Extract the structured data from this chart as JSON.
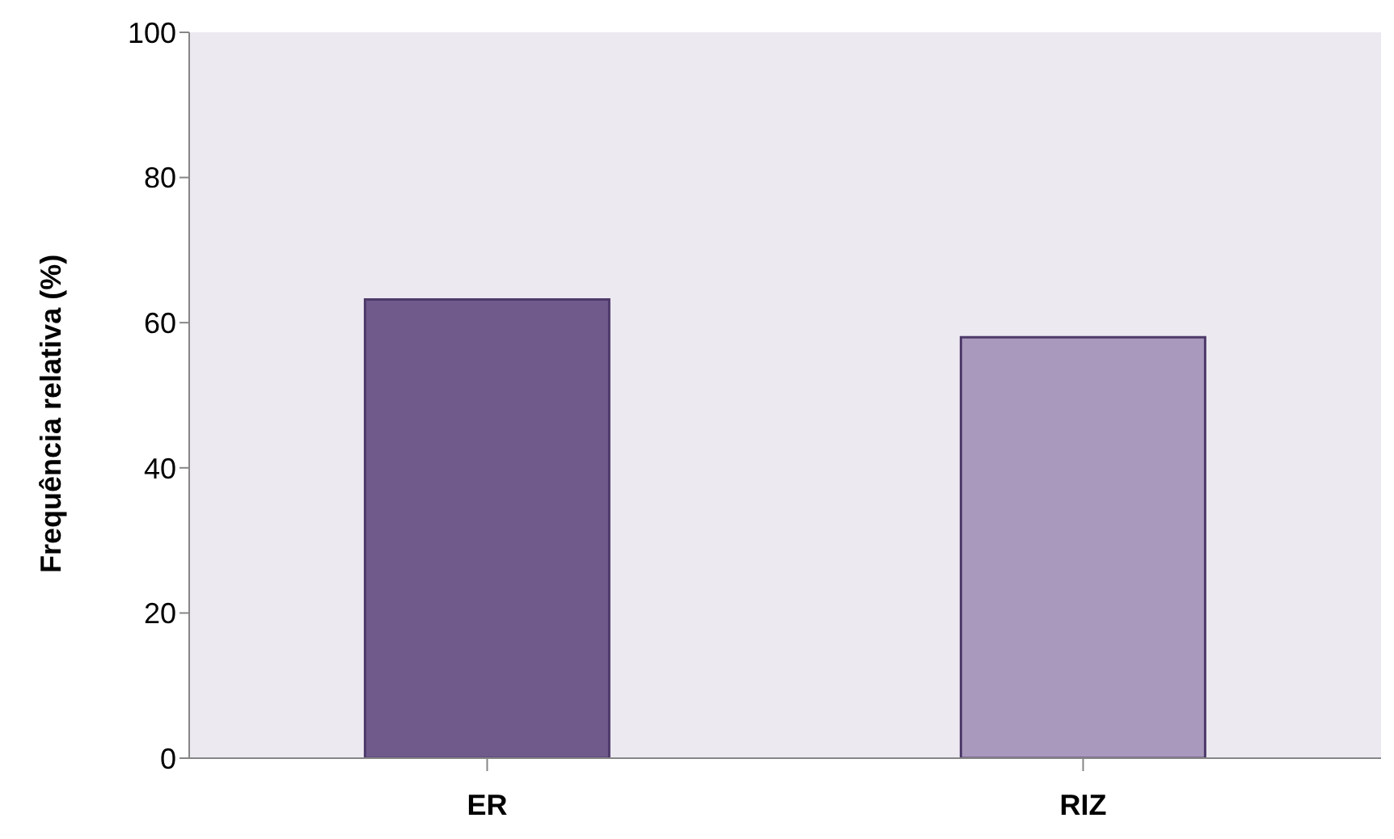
{
  "chart_data": {
    "type": "bar",
    "ylabel": "Frequência relativa (%)",
    "categories": [
      "ER",
      "RIZ"
    ],
    "values": [
      63.2,
      58.0
    ],
    "colors": [
      "#705a8c",
      "#a999bd"
    ],
    "ylim": [
      0,
      100
    ],
    "yticks": [
      0,
      20,
      40,
      60,
      80,
      100
    ],
    "grid": false
  }
}
